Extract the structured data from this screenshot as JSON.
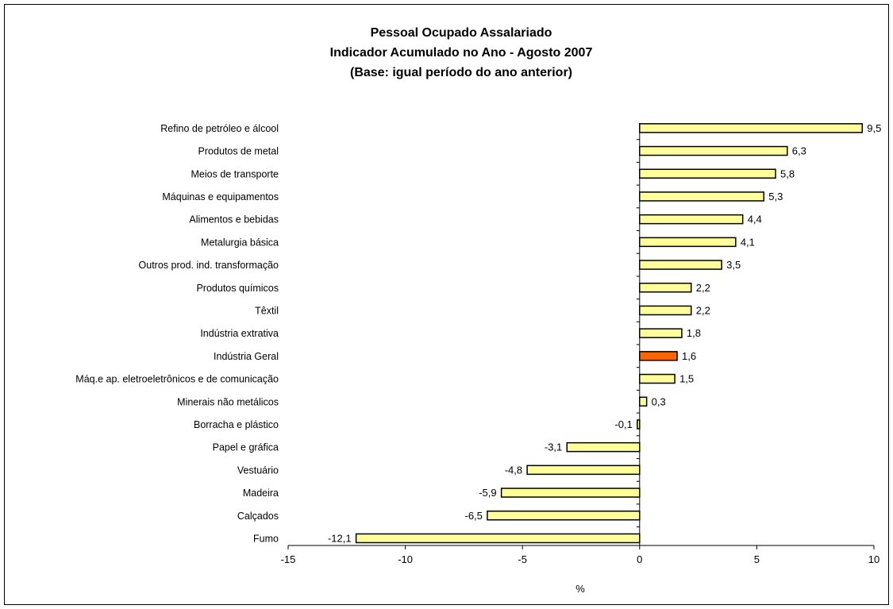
{
  "chart_data": {
    "type": "bar",
    "orientation": "horizontal",
    "title": [
      "Pessoal Ocupado Assalariado",
      "Indicador Acumulado no Ano - Agosto 2007",
      "(Base: igual período do ano anterior)"
    ],
    "xlabel": "%",
    "ylabel": "",
    "xlim": [
      -15,
      10
    ],
    "xticks": [
      -15,
      -10,
      -5,
      0,
      5,
      10
    ],
    "xtick_labels": [
      "-15",
      "-10",
      "-5",
      "0",
      "5",
      "10"
    ],
    "grid": false,
    "legend": "none",
    "colors": {
      "default_bar": "#ffff99",
      "highlight_bar": "#ff6600",
      "bar_border": "#000000"
    },
    "highlight_category": "Indústria Geral",
    "categories": [
      "Refino de petróleo e álcool",
      "Produtos de metal",
      "Meios de transporte",
      "Máquinas e equipamentos",
      "Alimentos e bebidas",
      "Metalurgia básica",
      "Outros prod. ind. transformação",
      "Produtos químicos",
      "Têxtil",
      "Indústria extrativa",
      "Indústria Geral",
      "Máq.e ap. eletroeletrônicos e de comunicação",
      "Minerais não metálicos",
      "Borracha e plástico",
      "Papel e gráfica",
      "Vestuário",
      "Madeira",
      "Calçados",
      "Fumo"
    ],
    "values": [
      9.5,
      6.3,
      5.8,
      5.3,
      4.4,
      4.1,
      3.5,
      2.2,
      2.2,
      1.8,
      1.6,
      1.5,
      0.3,
      -0.1,
      -3.1,
      -4.8,
      -5.9,
      -6.5,
      -12.1
    ],
    "value_labels": [
      "9,5",
      "6,3",
      "5,8",
      "5,3",
      "4,4",
      "4,1",
      "3,5",
      "2,2",
      "2,2",
      "1,8",
      "1,6",
      "1,5",
      "0,3",
      "-0,1",
      "-3,1",
      "-4,8",
      "-5,9",
      "-6,5",
      "-12,1"
    ]
  }
}
